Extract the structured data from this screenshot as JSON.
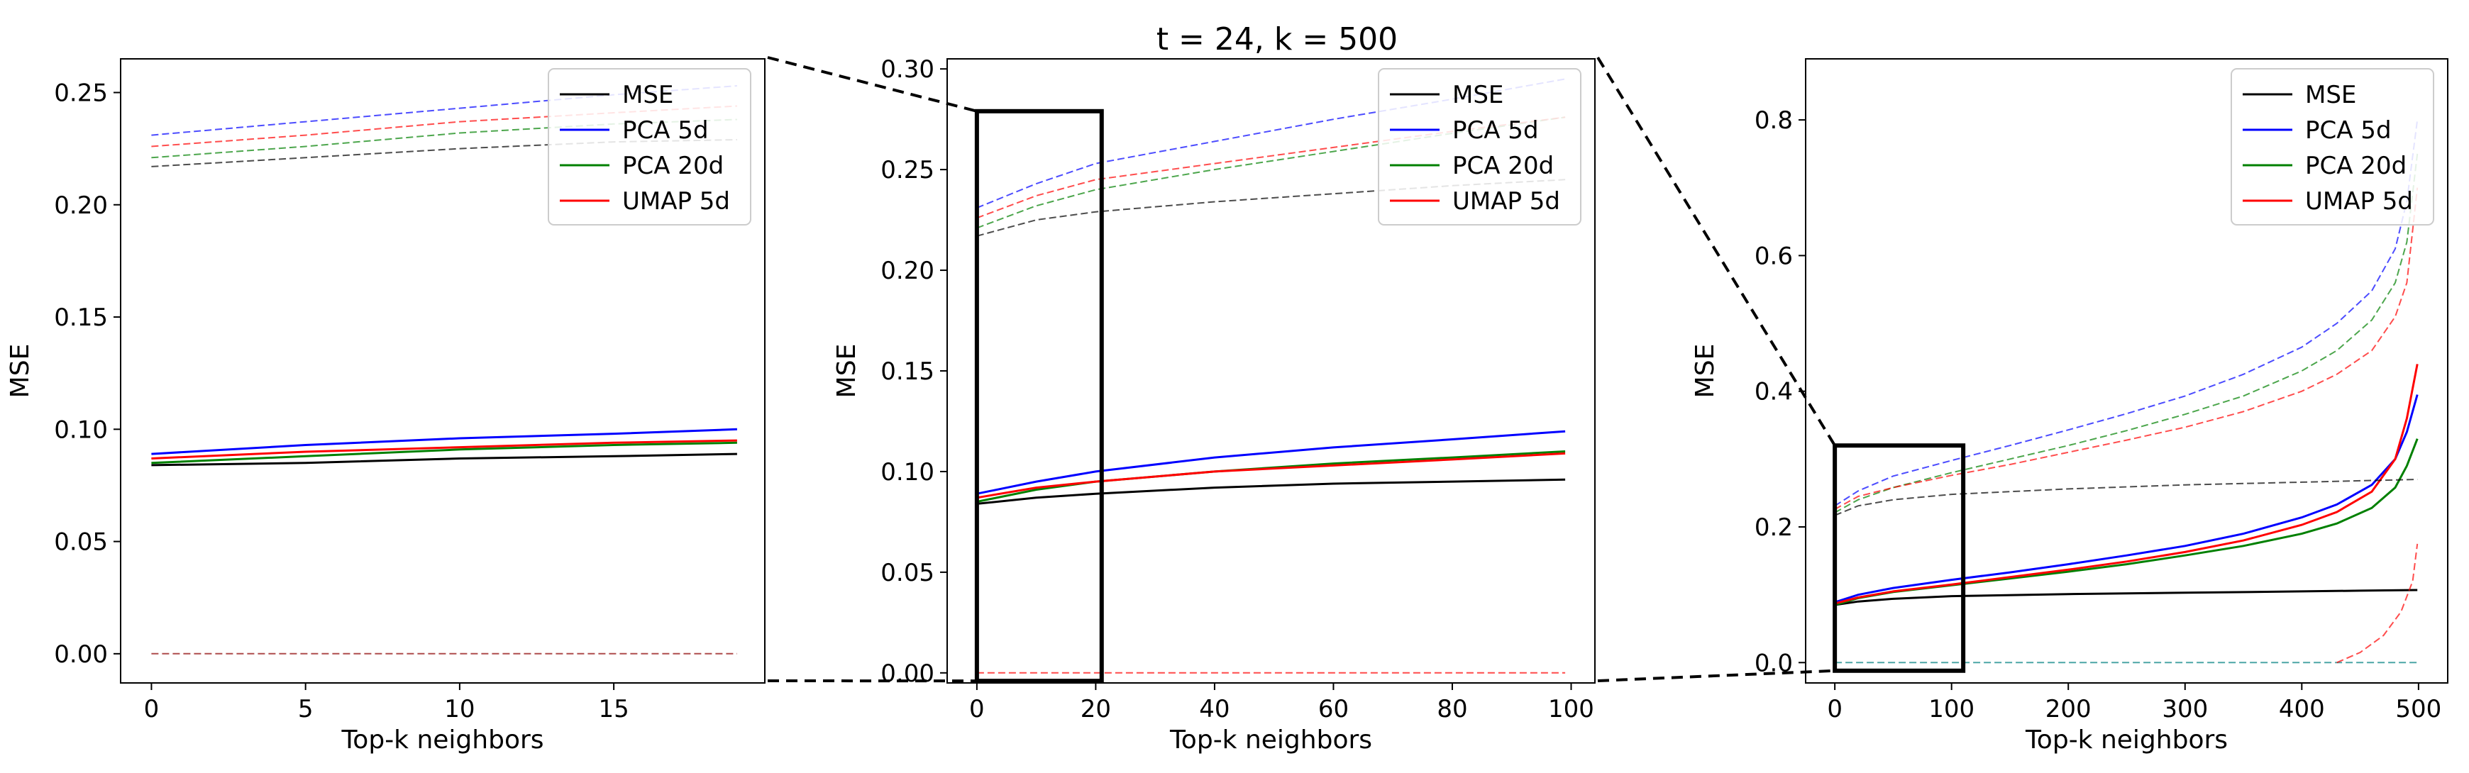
{
  "figure": {
    "title": "t = 24, k = 500",
    "colors": {
      "MSE": "#000000",
      "PCA 5d": "#0000ff",
      "PCA 20d": "#008000",
      "UMAP 5d": "#ff0000"
    }
  },
  "chart_data": [
    {
      "type": "line",
      "title": "",
      "xlabel": "Top-k neighbors",
      "ylabel": "MSE",
      "xlim": [
        -1,
        19.9
      ],
      "ylim": [
        -0.013,
        0.265
      ],
      "xticks": [
        0,
        5,
        10,
        15
      ],
      "xtick_labels": [
        "0",
        "5",
        "10",
        "15"
      ],
      "yticks": [
        0,
        0.05,
        0.1,
        0.15,
        0.2,
        0.25
      ],
      "ytick_labels": [
        "0.00",
        "0.05",
        "0.10",
        "0.15",
        "0.20",
        "0.25"
      ],
      "legend_position": "top-right",
      "legend": [
        {
          "label": "MSE",
          "color": "#000000"
        },
        {
          "label": "PCA 5d",
          "color": "#0000ff"
        },
        {
          "label": "PCA 20d",
          "color": "#008000"
        },
        {
          "label": "UMAP 5d",
          "color": "#ff0000"
        }
      ],
      "zoom_box": null,
      "series": [
        {
          "name": "MSE",
          "color": "#000000",
          "style": "solid",
          "x": [
            0,
            5,
            10,
            15,
            19
          ],
          "y": [
            0.084,
            0.085,
            0.087,
            0.088,
            0.089
          ]
        },
        {
          "name": "PCA 5d",
          "color": "#0000ff",
          "style": "solid",
          "x": [
            0,
            5,
            10,
            15,
            19
          ],
          "y": [
            0.089,
            0.093,
            0.096,
            0.098,
            0.1
          ]
        },
        {
          "name": "PCA 20d",
          "color": "#008000",
          "style": "solid",
          "x": [
            0,
            5,
            10,
            15,
            19
          ],
          "y": [
            0.085,
            0.088,
            0.091,
            0.093,
            0.094
          ]
        },
        {
          "name": "UMAP 5d",
          "color": "#ff0000",
          "style": "solid",
          "x": [
            0,
            5,
            10,
            15,
            19
          ],
          "y": [
            0.087,
            0.09,
            0.092,
            0.094,
            0.095
          ]
        },
        {
          "name": "MSE",
          "color": "#000000",
          "style": "dashed",
          "x": [
            0,
            5,
            10,
            15,
            19
          ],
          "y": [
            0.217,
            0.221,
            0.225,
            0.228,
            0.229
          ]
        },
        {
          "name": "PCA 5d",
          "color": "#0000ff",
          "style": "dashed",
          "x": [
            0,
            5,
            10,
            15,
            19
          ],
          "y": [
            0.231,
            0.237,
            0.243,
            0.249,
            0.253
          ]
        },
        {
          "name": "PCA 20d",
          "color": "#008000",
          "style": "dashed",
          "x": [
            0,
            5,
            10,
            15,
            19
          ],
          "y": [
            0.221,
            0.226,
            0.232,
            0.236,
            0.238
          ]
        },
        {
          "name": "UMAP 5d",
          "color": "#ff0000",
          "style": "dashed",
          "x": [
            0,
            5,
            10,
            15,
            19
          ],
          "y": [
            0.226,
            0.231,
            0.237,
            0.241,
            0.244
          ]
        },
        {
          "name": "baseline",
          "color": "#8b0000",
          "style": "dashed",
          "x": [
            0,
            19
          ],
          "y": [
            0,
            0
          ]
        }
      ]
    },
    {
      "type": "line",
      "title": "t = 24, k = 500",
      "xlabel": "Top-k neighbors",
      "ylabel": "MSE",
      "xlim": [
        -5,
        104
      ],
      "ylim": [
        -0.005,
        0.305
      ],
      "xticks": [
        0,
        20,
        40,
        60,
        80,
        100
      ],
      "xtick_labels": [
        "0",
        "20",
        "40",
        "60",
        "80",
        "100"
      ],
      "yticks": [
        0,
        0.05,
        0.1,
        0.15,
        0.2,
        0.25,
        0.3
      ],
      "ytick_labels": [
        "0.00",
        "0.05",
        "0.10",
        "0.15",
        "0.20",
        "0.25",
        "0.30"
      ],
      "legend_position": "top-right",
      "legend": [
        {
          "label": "MSE",
          "color": "#000000"
        },
        {
          "label": "PCA 5d",
          "color": "#0000ff"
        },
        {
          "label": "PCA 20d",
          "color": "#008000"
        },
        {
          "label": "UMAP 5d",
          "color": "#ff0000"
        }
      ],
      "zoom_box": {
        "x": [
          0,
          21
        ],
        "y": [
          -0.004,
          0.279
        ]
      },
      "series": [
        {
          "name": "MSE",
          "color": "#000000",
          "style": "solid",
          "x": [
            0,
            10,
            20,
            40,
            60,
            80,
            99
          ],
          "y": [
            0.084,
            0.087,
            0.089,
            0.092,
            0.094,
            0.095,
            0.096
          ]
        },
        {
          "name": "PCA 5d",
          "color": "#0000ff",
          "style": "solid",
          "x": [
            0,
            10,
            20,
            40,
            60,
            80,
            99
          ],
          "y": [
            0.089,
            0.095,
            0.1,
            0.107,
            0.112,
            0.116,
            0.12
          ]
        },
        {
          "name": "PCA 20d",
          "color": "#008000",
          "style": "solid",
          "x": [
            0,
            10,
            20,
            40,
            60,
            80,
            99
          ],
          "y": [
            0.085,
            0.091,
            0.095,
            0.1,
            0.104,
            0.107,
            0.11
          ]
        },
        {
          "name": "UMAP 5d",
          "color": "#ff0000",
          "style": "solid",
          "x": [
            0,
            10,
            20,
            40,
            60,
            80,
            99
          ],
          "y": [
            0.087,
            0.092,
            0.095,
            0.1,
            0.103,
            0.106,
            0.109
          ]
        },
        {
          "name": "MSE",
          "color": "#000000",
          "style": "dashed",
          "x": [
            0,
            10,
            20,
            40,
            60,
            80,
            99
          ],
          "y": [
            0.217,
            0.225,
            0.229,
            0.234,
            0.238,
            0.242,
            0.245
          ]
        },
        {
          "name": "PCA 5d",
          "color": "#0000ff",
          "style": "dashed",
          "x": [
            0,
            10,
            20,
            40,
            60,
            80,
            99
          ],
          "y": [
            0.231,
            0.243,
            0.253,
            0.264,
            0.275,
            0.285,
            0.295
          ]
        },
        {
          "name": "PCA 20d",
          "color": "#008000",
          "style": "dashed",
          "x": [
            0,
            10,
            20,
            40,
            60,
            80,
            99
          ],
          "y": [
            0.221,
            0.232,
            0.24,
            0.25,
            0.259,
            0.268,
            0.276
          ]
        },
        {
          "name": "UMAP 5d",
          "color": "#ff0000",
          "style": "dashed",
          "x": [
            0,
            10,
            20,
            40,
            60,
            80,
            99
          ],
          "y": [
            0.226,
            0.237,
            0.245,
            0.253,
            0.261,
            0.269,
            0.276
          ]
        },
        {
          "name": "baseline",
          "color": "#ff0000",
          "style": "dashed",
          "x": [
            0,
            99
          ],
          "y": [
            0,
            0
          ]
        }
      ]
    },
    {
      "type": "line",
      "title": "",
      "xlabel": "Top-k neighbors",
      "ylabel": "MSE",
      "xlim": [
        -25,
        525
      ],
      "ylim": [
        -0.03,
        0.89
      ],
      "xticks": [
        0,
        100,
        200,
        300,
        400,
        500
      ],
      "xtick_labels": [
        "0",
        "100",
        "200",
        "300",
        "400",
        "500"
      ],
      "yticks": [
        0,
        0.2,
        0.4,
        0.6,
        0.8
      ],
      "ytick_labels": [
        "0.0",
        "0.2",
        "0.4",
        "0.6",
        "0.8"
      ],
      "legend_position": "top-right",
      "legend": [
        {
          "label": "MSE",
          "color": "#000000"
        },
        {
          "label": "PCA 5d",
          "color": "#0000ff"
        },
        {
          "label": "PCA 20d",
          "color": "#008000"
        },
        {
          "label": "UMAP 5d",
          "color": "#ff0000"
        }
      ],
      "zoom_box": {
        "x": [
          0,
          110
        ],
        "y": [
          -0.012,
          0.32
        ]
      },
      "series": [
        {
          "name": "MSE",
          "color": "#000000",
          "style": "solid",
          "x": [
            0,
            20,
            50,
            100,
            200,
            300,
            400,
            450,
            499
          ],
          "y": [
            0.085,
            0.09,
            0.094,
            0.098,
            0.101,
            0.103,
            0.105,
            0.106,
            0.107
          ]
        },
        {
          "name": "PCA 5d",
          "color": "#0000ff",
          "style": "solid",
          "x": [
            0,
            20,
            50,
            100,
            150,
            200,
            250,
            300,
            350,
            400,
            430,
            460,
            480,
            490,
            499
          ],
          "y": [
            0.089,
            0.1,
            0.11,
            0.122,
            0.133,
            0.145,
            0.158,
            0.172,
            0.19,
            0.214,
            0.233,
            0.262,
            0.3,
            0.34,
            0.395
          ]
        },
        {
          "name": "PCA 20d",
          "color": "#008000",
          "style": "solid",
          "x": [
            0,
            20,
            50,
            100,
            150,
            200,
            250,
            300,
            350,
            400,
            430,
            460,
            480,
            490,
            499
          ],
          "y": [
            0.085,
            0.095,
            0.104,
            0.114,
            0.124,
            0.134,
            0.145,
            0.158,
            0.172,
            0.19,
            0.205,
            0.228,
            0.258,
            0.29,
            0.33
          ]
        },
        {
          "name": "UMAP 5d",
          "color": "#ff0000",
          "style": "solid",
          "x": [
            0,
            20,
            50,
            100,
            150,
            200,
            250,
            300,
            350,
            400,
            430,
            460,
            480,
            490,
            499
          ],
          "y": [
            0.087,
            0.096,
            0.105,
            0.115,
            0.126,
            0.137,
            0.149,
            0.163,
            0.18,
            0.203,
            0.222,
            0.252,
            0.3,
            0.36,
            0.44
          ]
        },
        {
          "name": "MSE",
          "color": "#000000",
          "style": "dashed",
          "x": [
            0,
            20,
            50,
            100,
            200,
            300,
            400,
            499
          ],
          "y": [
            0.217,
            0.231,
            0.24,
            0.248,
            0.256,
            0.262,
            0.266,
            0.27
          ]
        },
        {
          "name": "PCA 5d",
          "color": "#0000ff",
          "style": "dashed",
          "x": [
            0,
            20,
            50,
            100,
            150,
            200,
            250,
            300,
            350,
            400,
            430,
            460,
            480,
            490,
            499
          ],
          "y": [
            0.231,
            0.253,
            0.275,
            0.298,
            0.32,
            0.343,
            0.367,
            0.393,
            0.425,
            0.465,
            0.5,
            0.548,
            0.61,
            0.68,
            0.8
          ]
        },
        {
          "name": "PCA 20d",
          "color": "#008000",
          "style": "dashed",
          "x": [
            0,
            20,
            50,
            100,
            150,
            200,
            250,
            300,
            350,
            400,
            430,
            460,
            480,
            490,
            499
          ],
          "y": [
            0.221,
            0.24,
            0.258,
            0.28,
            0.3,
            0.32,
            0.342,
            0.366,
            0.393,
            0.43,
            0.46,
            0.505,
            0.56,
            0.62,
            0.75
          ]
        },
        {
          "name": "UMAP 5d",
          "color": "#ff0000",
          "style": "dashed",
          "x": [
            0,
            20,
            50,
            100,
            150,
            200,
            250,
            300,
            350,
            400,
            430,
            460,
            480,
            490,
            499
          ],
          "y": [
            0.226,
            0.245,
            0.258,
            0.276,
            0.292,
            0.31,
            0.328,
            0.347,
            0.37,
            0.4,
            0.425,
            0.46,
            0.51,
            0.56,
            0.7
          ]
        },
        {
          "name": "baseline",
          "color": "#008080",
          "style": "dashed",
          "x": [
            0,
            499
          ],
          "y": [
            0,
            0
          ]
        },
        {
          "name": "UMAP 5d tail",
          "color": "#ff0000",
          "style": "dashed",
          "x": [
            430,
            450,
            470,
            485,
            495,
            499
          ],
          "y": [
            0,
            0.015,
            0.04,
            0.075,
            0.12,
            0.175
          ]
        }
      ]
    }
  ]
}
